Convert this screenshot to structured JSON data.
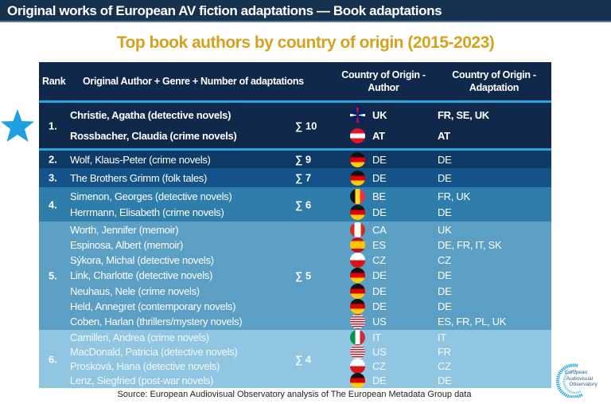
{
  "header": {
    "title": "Original works of European AV fiction adaptations — Book adaptations"
  },
  "subtitle": "Top book authors by country of origin (2015-2023)",
  "table": {
    "columns": [
      "Rank",
      "Original Author + Genre + Number of adaptations",
      "Country of Origin - Author",
      "Country of Origin - Adaptation"
    ],
    "groups": [
      {
        "rank": "1.",
        "sum": "∑ 10",
        "highlight": true,
        "rows": [
          {
            "author": "Christie, Agatha (detective novels)",
            "code": "UK",
            "flag": "uk",
            "adapt": "FR, SE, UK"
          },
          {
            "author": "Rossbacher, Claudia (crime novels)",
            "code": "AT",
            "flag": "at",
            "adapt": "AT"
          }
        ]
      },
      {
        "rank": "2.",
        "sum": "∑ 9",
        "rows": [
          {
            "author": "Wolf, Klaus-Peter (crime novels)",
            "code": "DE",
            "flag": "de",
            "adapt": "DE"
          }
        ]
      },
      {
        "rank": "3.",
        "sum": "∑ 7",
        "rows": [
          {
            "author": "The Brothers Grimm (folk tales)",
            "code": "DE",
            "flag": "de",
            "adapt": "DE"
          }
        ]
      },
      {
        "rank": "4.",
        "sum": "∑ 6",
        "rows": [
          {
            "author": "Simenon, Georges (detective novels)",
            "code": "BE",
            "flag": "be",
            "adapt": "FR, UK"
          },
          {
            "author": "Herrmann, Elisabeth (crime novels)",
            "code": "DE",
            "flag": "de",
            "adapt": "DE"
          }
        ]
      },
      {
        "rank": "5.",
        "sum": "∑ 5",
        "rows": [
          {
            "author": "Worth, Jennifer (memoir)",
            "code": "CA",
            "flag": "ca",
            "adapt": "UK"
          },
          {
            "author": "Espinosa, Albert (memoir)",
            "code": "ES",
            "flag": "es",
            "adapt": "DE, FR, IT, SK"
          },
          {
            "author": "Sýkora, Michal (detective novels)",
            "code": "CZ",
            "flag": "cz",
            "adapt": "CZ"
          },
          {
            "author": "Link, Charlotte (detective novels)",
            "code": "DE",
            "flag": "de",
            "adapt": "DE"
          },
          {
            "author": "Neuhaus, Nele (crime novels)",
            "code": "DE",
            "flag": "de",
            "adapt": "DE"
          },
          {
            "author": "Held, Annegret (contemporary novels)",
            "code": "DE",
            "flag": "de",
            "adapt": "DE"
          },
          {
            "author": "Coben, Harlan (thrillers/mystery novels)",
            "code": "US",
            "flag": "us",
            "adapt": "ES, FR, PL, UK"
          }
        ]
      },
      {
        "rank": "6.",
        "sum": "∑ 4",
        "rows": [
          {
            "author": "Camilleri, Andrea (crime novels)",
            "code": "IT",
            "flag": "it",
            "adapt": "IT"
          },
          {
            "author": "MacDonald, Patricia (detective novels)",
            "code": "US",
            "flag": "us",
            "adapt": "FR"
          },
          {
            "author": "Prosková, Hana (detective novels)",
            "code": "CZ",
            "flag": "cz",
            "adapt": "CZ"
          },
          {
            "author": "Lenz, Siegfried (post-war novels)",
            "code": "DE",
            "flag": "de",
            "adapt": "DE"
          }
        ]
      }
    ]
  },
  "source": "Source: European Audiovisual Observatory analysis of The European Metadata Group data",
  "logo": {
    "text": "European Audiovisual Observatory"
  },
  "colors": {
    "header_bar": "#17324f",
    "subtitle": "#d4a21c",
    "star": "#1ea0e0",
    "separator": "#2ba3df"
  }
}
